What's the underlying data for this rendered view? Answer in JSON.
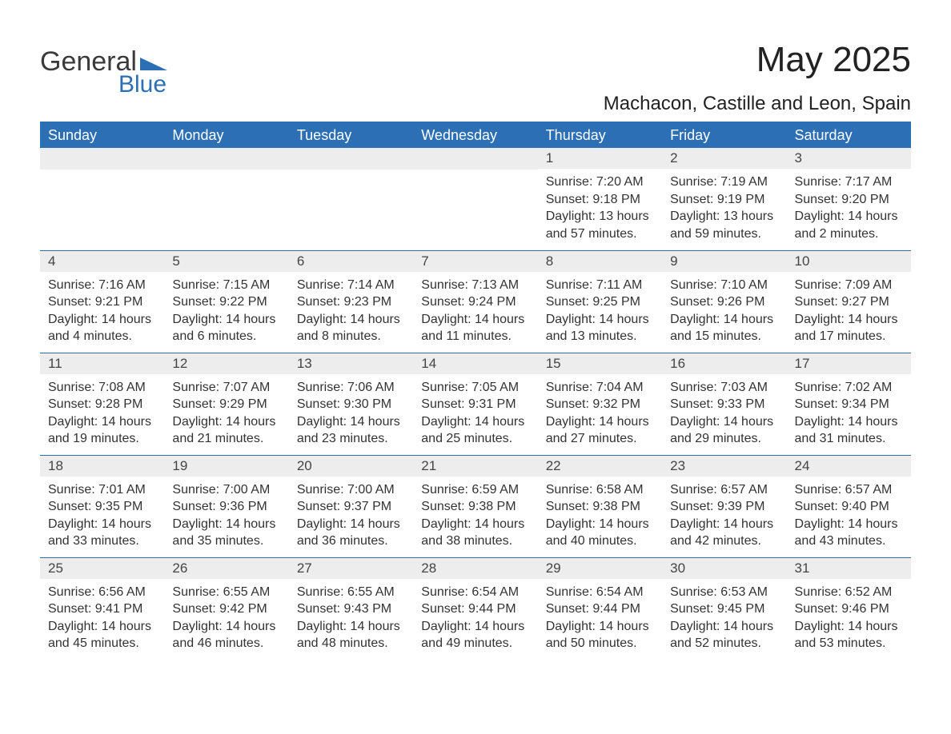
{
  "colors": {
    "header_bg": "#2d6fb5",
    "header_text": "#ffffff",
    "daynum_bg": "#ededed",
    "daynum_text": "#444444",
    "body_text": "#333333",
    "rule": "#2d6fb5",
    "page_bg": "#ffffff",
    "logo_gray": "#3a3a3a",
    "logo_blue": "#2d6fb5"
  },
  "fonts": {
    "family": "Arial",
    "month_title_size_pt": 33,
    "location_size_pt": 18,
    "dayheader_size_pt": 13,
    "body_size_pt": 12
  },
  "logo": {
    "line1": "General",
    "line2": "Blue"
  },
  "title": "May 2025",
  "location": "Machacon, Castille and Leon, Spain",
  "day_headers": [
    "Sunday",
    "Monday",
    "Tuesday",
    "Wednesday",
    "Thursday",
    "Friday",
    "Saturday"
  ],
  "weeks": [
    [
      null,
      null,
      null,
      null,
      {
        "n": "1",
        "sr": "Sunrise: 7:20 AM",
        "ss": "Sunset: 9:18 PM",
        "d1": "Daylight: 13 hours",
        "d2": "and 57 minutes."
      },
      {
        "n": "2",
        "sr": "Sunrise: 7:19 AM",
        "ss": "Sunset: 9:19 PM",
        "d1": "Daylight: 13 hours",
        "d2": "and 59 minutes."
      },
      {
        "n": "3",
        "sr": "Sunrise: 7:17 AM",
        "ss": "Sunset: 9:20 PM",
        "d1": "Daylight: 14 hours",
        "d2": "and 2 minutes."
      }
    ],
    [
      {
        "n": "4",
        "sr": "Sunrise: 7:16 AM",
        "ss": "Sunset: 9:21 PM",
        "d1": "Daylight: 14 hours",
        "d2": "and 4 minutes."
      },
      {
        "n": "5",
        "sr": "Sunrise: 7:15 AM",
        "ss": "Sunset: 9:22 PM",
        "d1": "Daylight: 14 hours",
        "d2": "and 6 minutes."
      },
      {
        "n": "6",
        "sr": "Sunrise: 7:14 AM",
        "ss": "Sunset: 9:23 PM",
        "d1": "Daylight: 14 hours",
        "d2": "and 8 minutes."
      },
      {
        "n": "7",
        "sr": "Sunrise: 7:13 AM",
        "ss": "Sunset: 9:24 PM",
        "d1": "Daylight: 14 hours",
        "d2": "and 11 minutes."
      },
      {
        "n": "8",
        "sr": "Sunrise: 7:11 AM",
        "ss": "Sunset: 9:25 PM",
        "d1": "Daylight: 14 hours",
        "d2": "and 13 minutes."
      },
      {
        "n": "9",
        "sr": "Sunrise: 7:10 AM",
        "ss": "Sunset: 9:26 PM",
        "d1": "Daylight: 14 hours",
        "d2": "and 15 minutes."
      },
      {
        "n": "10",
        "sr": "Sunrise: 7:09 AM",
        "ss": "Sunset: 9:27 PM",
        "d1": "Daylight: 14 hours",
        "d2": "and 17 minutes."
      }
    ],
    [
      {
        "n": "11",
        "sr": "Sunrise: 7:08 AM",
        "ss": "Sunset: 9:28 PM",
        "d1": "Daylight: 14 hours",
        "d2": "and 19 minutes."
      },
      {
        "n": "12",
        "sr": "Sunrise: 7:07 AM",
        "ss": "Sunset: 9:29 PM",
        "d1": "Daylight: 14 hours",
        "d2": "and 21 minutes."
      },
      {
        "n": "13",
        "sr": "Sunrise: 7:06 AM",
        "ss": "Sunset: 9:30 PM",
        "d1": "Daylight: 14 hours",
        "d2": "and 23 minutes."
      },
      {
        "n": "14",
        "sr": "Sunrise: 7:05 AM",
        "ss": "Sunset: 9:31 PM",
        "d1": "Daylight: 14 hours",
        "d2": "and 25 minutes."
      },
      {
        "n": "15",
        "sr": "Sunrise: 7:04 AM",
        "ss": "Sunset: 9:32 PM",
        "d1": "Daylight: 14 hours",
        "d2": "and 27 minutes."
      },
      {
        "n": "16",
        "sr": "Sunrise: 7:03 AM",
        "ss": "Sunset: 9:33 PM",
        "d1": "Daylight: 14 hours",
        "d2": "and 29 minutes."
      },
      {
        "n": "17",
        "sr": "Sunrise: 7:02 AM",
        "ss": "Sunset: 9:34 PM",
        "d1": "Daylight: 14 hours",
        "d2": "and 31 minutes."
      }
    ],
    [
      {
        "n": "18",
        "sr": "Sunrise: 7:01 AM",
        "ss": "Sunset: 9:35 PM",
        "d1": "Daylight: 14 hours",
        "d2": "and 33 minutes."
      },
      {
        "n": "19",
        "sr": "Sunrise: 7:00 AM",
        "ss": "Sunset: 9:36 PM",
        "d1": "Daylight: 14 hours",
        "d2": "and 35 minutes."
      },
      {
        "n": "20",
        "sr": "Sunrise: 7:00 AM",
        "ss": "Sunset: 9:37 PM",
        "d1": "Daylight: 14 hours",
        "d2": "and 36 minutes."
      },
      {
        "n": "21",
        "sr": "Sunrise: 6:59 AM",
        "ss": "Sunset: 9:38 PM",
        "d1": "Daylight: 14 hours",
        "d2": "and 38 minutes."
      },
      {
        "n": "22",
        "sr": "Sunrise: 6:58 AM",
        "ss": "Sunset: 9:38 PM",
        "d1": "Daylight: 14 hours",
        "d2": "and 40 minutes."
      },
      {
        "n": "23",
        "sr": "Sunrise: 6:57 AM",
        "ss": "Sunset: 9:39 PM",
        "d1": "Daylight: 14 hours",
        "d2": "and 42 minutes."
      },
      {
        "n": "24",
        "sr": "Sunrise: 6:57 AM",
        "ss": "Sunset: 9:40 PM",
        "d1": "Daylight: 14 hours",
        "d2": "and 43 minutes."
      }
    ],
    [
      {
        "n": "25",
        "sr": "Sunrise: 6:56 AM",
        "ss": "Sunset: 9:41 PM",
        "d1": "Daylight: 14 hours",
        "d2": "and 45 minutes."
      },
      {
        "n": "26",
        "sr": "Sunrise: 6:55 AM",
        "ss": "Sunset: 9:42 PM",
        "d1": "Daylight: 14 hours",
        "d2": "and 46 minutes."
      },
      {
        "n": "27",
        "sr": "Sunrise: 6:55 AM",
        "ss": "Sunset: 9:43 PM",
        "d1": "Daylight: 14 hours",
        "d2": "and 48 minutes."
      },
      {
        "n": "28",
        "sr": "Sunrise: 6:54 AM",
        "ss": "Sunset: 9:44 PM",
        "d1": "Daylight: 14 hours",
        "d2": "and 49 minutes."
      },
      {
        "n": "29",
        "sr": "Sunrise: 6:54 AM",
        "ss": "Sunset: 9:44 PM",
        "d1": "Daylight: 14 hours",
        "d2": "and 50 minutes."
      },
      {
        "n": "30",
        "sr": "Sunrise: 6:53 AM",
        "ss": "Sunset: 9:45 PM",
        "d1": "Daylight: 14 hours",
        "d2": "and 52 minutes."
      },
      {
        "n": "31",
        "sr": "Sunrise: 6:52 AM",
        "ss": "Sunset: 9:46 PM",
        "d1": "Daylight: 14 hours",
        "d2": "and 53 minutes."
      }
    ]
  ]
}
